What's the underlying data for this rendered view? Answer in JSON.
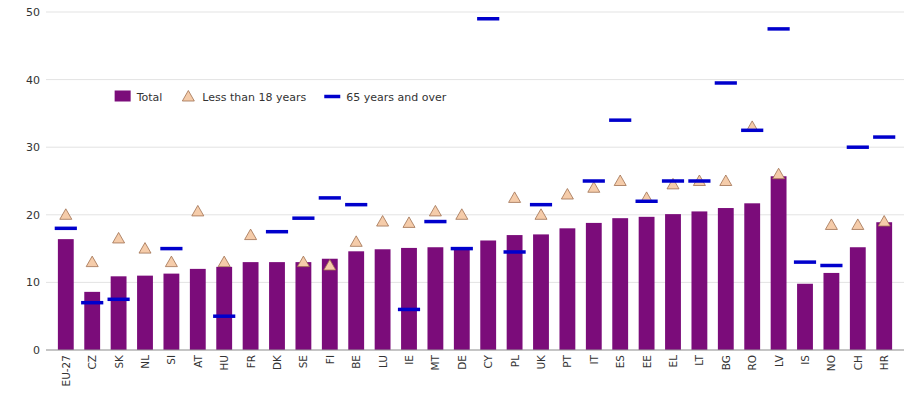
{
  "chart_data": {
    "type": "bar",
    "categories": [
      "EU-27",
      "CZ",
      "SK",
      "NL",
      "SI",
      "AT",
      "HU",
      "FR",
      "DK",
      "SE",
      "FI",
      "BE",
      "LU",
      "IE",
      "MT",
      "DE",
      "CY",
      "PL",
      "UK",
      "PT",
      "IT",
      "ES",
      "EE",
      "EL",
      "LT",
      "BG",
      "RO",
      "LV",
      "IS",
      "NO",
      "CH",
      "HR"
    ],
    "series": [
      {
        "name": "Total",
        "type": "bar",
        "color": "#7B0C7A",
        "values": [
          16.4,
          8.6,
          10.9,
          11.0,
          11.3,
          12.0,
          12.3,
          13.0,
          13.0,
          13.0,
          13.5,
          14.6,
          14.9,
          15.1,
          15.2,
          15.2,
          16.2,
          17.0,
          17.1,
          18.0,
          18.8,
          19.5,
          19.7,
          20.1,
          20.5,
          21.0,
          21.7,
          25.7,
          9.8,
          11.4,
          15.2,
          18.9
        ]
      },
      {
        "name": "Less than 18 years",
        "type": "scatter",
        "marker": "triangle",
        "color": "#F5CCAA",
        "values": [
          20.0,
          13.0,
          16.5,
          15.0,
          13.0,
          20.5,
          13.0,
          17.0,
          null,
          13.0,
          12.5,
          16.0,
          19.0,
          18.8,
          20.5,
          20.0,
          null,
          22.5,
          20.0,
          23.0,
          24.0,
          25.0,
          22.5,
          24.5,
          25.0,
          25.0,
          33.0,
          26.0,
          null,
          18.5,
          18.5,
          19.0
        ]
      },
      {
        "name": "65 years and over",
        "type": "scatter",
        "marker": "dash",
        "color": "#0000CC",
        "values": [
          18.0,
          7.0,
          7.5,
          null,
          15.0,
          null,
          5.0,
          null,
          17.5,
          19.5,
          22.5,
          21.5,
          null,
          6.0,
          19.0,
          15.0,
          49.0,
          14.5,
          21.5,
          null,
          25.0,
          34.0,
          22.0,
          25.0,
          25.0,
          39.5,
          32.5,
          47.5,
          13.0,
          12.5,
          30.0,
          31.5
        ]
      }
    ],
    "ylim": [
      0,
      50
    ],
    "yticks": [
      0,
      10,
      20,
      30,
      40,
      50
    ],
    "grid": true,
    "legend": "upper left"
  }
}
